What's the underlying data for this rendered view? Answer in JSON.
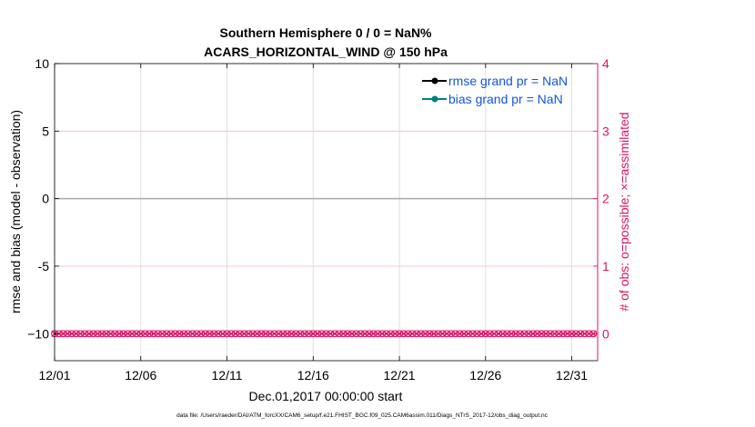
{
  "chart_data": {
    "type": "line",
    "title_line1": "Southern Hemisphere 0 / 0 = NaN%",
    "title_line2": "ACARS_HORIZONTAL_WIND @ 150 hPa",
    "xlabel": "Dec.01,2017 00:00:00 start",
    "ylabel_left": "rmse and bias (model - observation)",
    "ylabel_right": "# of obs: o=possible; ×=assimilated",
    "footnote": "data file: /Users/raeder/DAI/ATM_forcXX/CAM6_setup/f.e21.FHIST_BGC.f09_025.CAM6assim.011/Diags_NTrS_2017-12/obs_diag_output.nc",
    "x_range": [
      1,
      32.5
    ],
    "x_ticks": [
      1,
      6,
      11,
      16,
      21,
      26,
      31
    ],
    "x_tick_labels": [
      "12/01",
      "12/06",
      "12/11",
      "12/16",
      "12/21",
      "12/26",
      "12/31"
    ],
    "ylim_left": [
      -12,
      10
    ],
    "yticks_left": [
      10,
      5,
      0,
      -5,
      -10
    ],
    "ytick_labels_left": [
      "10",
      "5",
      "0",
      "-5",
      "−10"
    ],
    "ylim_right": [
      -0.4,
      4
    ],
    "yticks_right": [
      4,
      3,
      2,
      1,
      0
    ],
    "ytick_labels_right": [
      "4",
      "3",
      "2",
      "1",
      "0"
    ],
    "zero_line": 0,
    "series": [
      {
        "name": "rmse grand pr = NaN",
        "color": "#000000",
        "values": []
      },
      {
        "name": "bias grand pr = NaN",
        "color": "#008080",
        "values": []
      },
      {
        "name": "obs possible / assimilated",
        "color": "#dc1464",
        "axis": "right",
        "x_start": 1.0,
        "x_step": 0.25,
        "count": 126,
        "value": 0
      }
    ],
    "colors": {
      "axis": "#000000",
      "right_axis": "#dc1464",
      "grid": "#e0e0e0",
      "grid_right": "#f4c7d6",
      "zero_line": "#aaaaaa",
      "legend_text": "#1155dd"
    }
  }
}
